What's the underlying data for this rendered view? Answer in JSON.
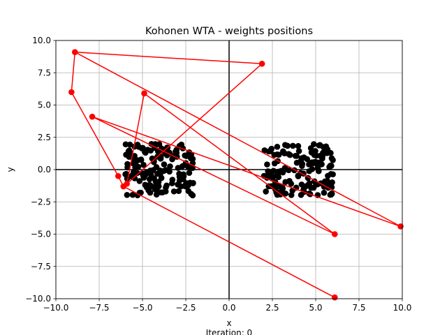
{
  "chart_data": {
    "type": "scatter",
    "title": "Kohonen WTA - weights positions",
    "xlabel": "x",
    "ylabel": "y",
    "footer_text": "Iteration: 0",
    "xlim": [
      -10,
      10
    ],
    "ylim": [
      -10,
      10
    ],
    "xticks": [
      -10,
      -7.5,
      -5,
      -2.5,
      0,
      2.5,
      5,
      7.5,
      10
    ],
    "yticks": [
      -10,
      -7.5,
      -5,
      -2.5,
      0,
      2.5,
      5,
      7.5,
      10
    ],
    "xtick_labels": [
      "−10.0",
      "−7.5",
      "−5.0",
      "−2.5",
      "0.0",
      "2.5",
      "5.0",
      "7.5",
      "10.0"
    ],
    "ytick_labels": [
      "−10.0",
      "−7.5",
      "−5.0",
      "−2.5",
      "0.0",
      "2.5",
      "5.0",
      "7.5",
      "10.0"
    ],
    "grid": true,
    "zero_axes": true,
    "colors": {
      "points": "#000000",
      "weights": "#ff0000",
      "grid": "#b0b0b0",
      "axes": "#000000"
    },
    "clusters": [
      {
        "name": "",
        "center": [
          -4.0,
          0.0
        ],
        "x_range": [
          -6.0,
          -2.0
        ],
        "y_range": [
          -2.0,
          2.0
        ],
        "count": 150,
        "seed": 7
      },
      {
        "name": "",
        "center": [
          4.0,
          0.0
        ],
        "x_range": [
          2.0,
          6.0
        ],
        "y_range": [
          -2.0,
          2.0
        ],
        "count": 150,
        "seed": 13
      }
    ],
    "weights": [
      {
        "x": -8.9,
        "y": 9.1
      },
      {
        "x": 1.9,
        "y": 8.2
      },
      {
        "x": -5.9,
        "y": -1.1
      },
      {
        "x": -4.9,
        "y": 5.9
      },
      {
        "x": 6.1,
        "y": -5.0
      },
      {
        "x": -7.9,
        "y": 4.1
      },
      {
        "x": 9.9,
        "y": -4.4
      },
      {
        "x": -9.1,
        "y": 6.0
      },
      {
        "x": -6.4,
        "y": -0.5
      },
      {
        "x": -6.1,
        "y": -1.3
      },
      {
        "x": 6.1,
        "y": -9.9
      }
    ],
    "weight_path_order": [
      0,
      1,
      2,
      3,
      4,
      5,
      6,
      0,
      7,
      8,
      9,
      10
    ]
  }
}
